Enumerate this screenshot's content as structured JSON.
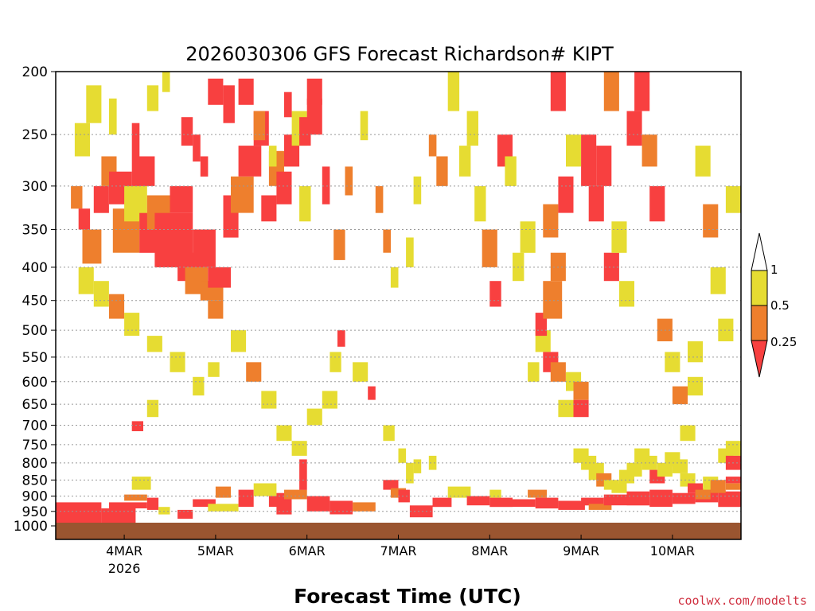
{
  "chart_data": {
    "type": "heatmap",
    "title": "2026030306 GFS Forecast Richardson# KIPT",
    "xlabel": "Forecast Time (UTC)",
    "ylabel": "",
    "credit": "coolwx.com/modelts",
    "y_scale": "log",
    "y_reversed": true,
    "ylim": [
      200,
      1000
    ],
    "y_ticks": [
      "200",
      "250",
      "300",
      "350",
      "400",
      "450",
      "500",
      "550",
      "600",
      "650",
      "700",
      "750",
      "800",
      "850",
      "900",
      "950",
      "1000"
    ],
    "y_tick_values": [
      200,
      250,
      300,
      350,
      400,
      450,
      500,
      550,
      600,
      650,
      700,
      750,
      800,
      850,
      900,
      950,
      1000
    ],
    "x_tick_labels": [
      "4MAR",
      "5MAR",
      "6MAR",
      "7MAR",
      "8MAR",
      "9MAR",
      "10MAR"
    ],
    "x_tick_hours": [
      18,
      42,
      66,
      90,
      114,
      138,
      162
    ],
    "x_sublabel": "2026",
    "x_sublabel_index": 0,
    "x_range_hours": [
      0,
      180
    ],
    "grid": true,
    "colors": {
      "low": "#f84040",
      "mid": "#ee7f2d",
      "high": "#e6dc32",
      "ground": "#9a5530"
    },
    "colorbar": {
      "labels": [
        "1",
        "0.5",
        "0.25"
      ],
      "levels": [
        1,
        0.5,
        0.25
      ]
    },
    "cells": [
      [
        0,
        12,
        920,
        1000,
        "low"
      ],
      [
        12,
        21,
        940,
        990,
        "low"
      ],
      [
        14,
        24,
        920,
        940,
        "low"
      ],
      [
        18,
        24,
        895,
        915,
        "mid"
      ],
      [
        20,
        25,
        840,
        880,
        "high"
      ],
      [
        24,
        27,
        905,
        945,
        "low"
      ],
      [
        27,
        30,
        935,
        960,
        "high"
      ],
      [
        32,
        36,
        945,
        975,
        "low"
      ],
      [
        36,
        42,
        910,
        935,
        "low"
      ],
      [
        40,
        48,
        925,
        950,
        "high"
      ],
      [
        42,
        46,
        870,
        905,
        "mid"
      ],
      [
        48,
        52,
        880,
        935,
        "low"
      ],
      [
        52,
        58,
        860,
        900,
        "high"
      ],
      [
        56,
        60,
        900,
        935,
        "low"
      ],
      [
        58,
        62,
        890,
        960,
        "low"
      ],
      [
        60,
        66,
        880,
        910,
        "mid"
      ],
      [
        64,
        66,
        790,
        880,
        "low"
      ],
      [
        66,
        72,
        900,
        950,
        "low"
      ],
      [
        72,
        78,
        915,
        960,
        "low"
      ],
      [
        78,
        84,
        920,
        950,
        "mid"
      ],
      [
        86,
        90,
        850,
        880,
        "low"
      ],
      [
        88,
        92,
        875,
        905,
        "mid"
      ],
      [
        90,
        93,
        880,
        920,
        "low"
      ],
      [
        92,
        94,
        800,
        860,
        "high"
      ],
      [
        93,
        99,
        930,
        970,
        "low"
      ],
      [
        99,
        104,
        905,
        935,
        "low"
      ],
      [
        103,
        109,
        870,
        905,
        "high"
      ],
      [
        108,
        114,
        900,
        930,
        "low"
      ],
      [
        114,
        120,
        905,
        935,
        "low"
      ],
      [
        114,
        117,
        880,
        905,
        "high"
      ],
      [
        120,
        126,
        910,
        935,
        "low"
      ],
      [
        124,
        129,
        880,
        905,
        "mid"
      ],
      [
        126,
        132,
        905,
        940,
        "low"
      ],
      [
        132,
        139,
        915,
        945,
        "low"
      ],
      [
        138,
        144,
        905,
        930,
        "low"
      ],
      [
        140,
        146,
        925,
        945,
        "mid"
      ],
      [
        144,
        150,
        895,
        930,
        "low"
      ],
      [
        150,
        156,
        885,
        930,
        "low"
      ],
      [
        156,
        162,
        880,
        935,
        "low"
      ],
      [
        162,
        168,
        890,
        925,
        "low"
      ],
      [
        168,
        174,
        875,
        920,
        "low"
      ],
      [
        174,
        180,
        885,
        935,
        "low"
      ],
      [
        176,
        180,
        840,
        860,
        "low"
      ],
      [
        176,
        180,
        860,
        880,
        "mid"
      ],
      [
        4,
        7,
        300,
        325,
        "mid"
      ],
      [
        6,
        9,
        325,
        350,
        "low"
      ],
      [
        7,
        12,
        350,
        395,
        "mid"
      ],
      [
        10,
        14,
        300,
        330,
        "low"
      ],
      [
        12,
        16,
        270,
        300,
        "mid"
      ],
      [
        14,
        20,
        285,
        320,
        "low"
      ],
      [
        15,
        22,
        325,
        380,
        "mid"
      ],
      [
        18,
        24,
        300,
        340,
        "high"
      ],
      [
        20,
        26,
        270,
        300,
        "low"
      ],
      [
        22,
        28,
        330,
        380,
        "low"
      ],
      [
        24,
        30,
        310,
        350,
        "mid"
      ],
      [
        26,
        36,
        330,
        400,
        "low"
      ],
      [
        30,
        36,
        300,
        330,
        "low"
      ],
      [
        32,
        39,
        380,
        420,
        "low"
      ],
      [
        34,
        40,
        400,
        440,
        "mid"
      ],
      [
        36,
        42,
        350,
        400,
        "low"
      ],
      [
        38,
        44,
        420,
        450,
        "mid"
      ],
      [
        40,
        46,
        400,
        430,
        "low"
      ],
      [
        44,
        48,
        310,
        360,
        "low"
      ],
      [
        46,
        52,
        290,
        330,
        "mid"
      ],
      [
        48,
        54,
        260,
        290,
        "low"
      ],
      [
        52,
        56,
        230,
        260,
        "low"
      ],
      [
        54,
        58,
        310,
        340,
        "low"
      ],
      [
        56,
        60,
        265,
        300,
        "mid"
      ],
      [
        58,
        62,
        285,
        320,
        "low"
      ],
      [
        60,
        64,
        250,
        280,
        "low"
      ],
      [
        62,
        66,
        230,
        260,
        "high"
      ],
      [
        64,
        67,
        300,
        340,
        "high"
      ],
      [
        66,
        70,
        220,
        250,
        "low"
      ],
      [
        70,
        72,
        280,
        320,
        "low"
      ],
      [
        73,
        76,
        350,
        390,
        "mid"
      ],
      [
        5,
        9,
        240,
        270,
        "high"
      ],
      [
        8,
        12,
        210,
        240,
        "high"
      ],
      [
        14,
        16,
        220,
        250,
        "high"
      ],
      [
        20,
        22,
        240,
        270,
        "low"
      ],
      [
        24,
        27,
        210,
        230,
        "high"
      ],
      [
        28,
        30,
        200,
        215,
        "high"
      ],
      [
        33,
        36,
        235,
        260,
        "low"
      ],
      [
        36,
        38,
        250,
        275,
        "low"
      ],
      [
        38,
        40,
        270,
        290,
        "low"
      ],
      [
        40,
        44,
        205,
        225,
        "low"
      ],
      [
        44,
        47,
        210,
        240,
        "low"
      ],
      [
        48,
        52,
        205,
        225,
        "low"
      ],
      [
        52,
        55,
        230,
        255,
        "mid"
      ],
      [
        56,
        58,
        260,
        280,
        "high"
      ],
      [
        60,
        62,
        215,
        235,
        "low"
      ],
      [
        64,
        67,
        235,
        260,
        "low"
      ],
      [
        66,
        70,
        205,
        225,
        "low"
      ],
      [
        6,
        10,
        400,
        440,
        "high"
      ],
      [
        10,
        14,
        420,
        460,
        "high"
      ],
      [
        14,
        18,
        440,
        480,
        "mid"
      ],
      [
        18,
        22,
        470,
        510,
        "high"
      ],
      [
        24,
        28,
        510,
        540,
        "high"
      ],
      [
        30,
        34,
        540,
        580,
        "high"
      ],
      [
        40,
        44,
        450,
        480,
        "mid"
      ],
      [
        46,
        50,
        500,
        540,
        "high"
      ],
      [
        50,
        54,
        560,
        600,
        "mid"
      ],
      [
        54,
        58,
        620,
        660,
        "high"
      ],
      [
        58,
        62,
        700,
        740,
        "high"
      ],
      [
        62,
        66,
        740,
        780,
        "high"
      ],
      [
        66,
        70,
        660,
        700,
        "high"
      ],
      [
        70,
        74,
        620,
        660,
        "high"
      ],
      [
        72,
        75,
        540,
        580,
        "high"
      ],
      [
        74,
        76,
        500,
        530,
        "low"
      ],
      [
        78,
        82,
        560,
        600,
        "high"
      ],
      [
        82,
        84,
        610,
        640,
        "low"
      ],
      [
        86,
        89,
        700,
        740,
        "high"
      ],
      [
        90,
        92,
        760,
        800,
        "high"
      ],
      [
        94,
        96,
        790,
        830,
        "high"
      ],
      [
        98,
        100,
        780,
        820,
        "high"
      ],
      [
        20,
        23,
        690,
        715,
        "low"
      ],
      [
        24,
        27,
        640,
        680,
        "high"
      ],
      [
        36,
        39,
        590,
        630,
        "high"
      ],
      [
        40,
        43,
        560,
        590,
        "high"
      ],
      [
        76,
        78,
        280,
        310,
        "mid"
      ],
      [
        80,
        82,
        230,
        255,
        "high"
      ],
      [
        84,
        86,
        300,
        330,
        "mid"
      ],
      [
        86,
        88,
        350,
        380,
        "mid"
      ],
      [
        88,
        90,
        400,
        430,
        "high"
      ],
      [
        92,
        94,
        360,
        400,
        "high"
      ],
      [
        94,
        96,
        290,
        320,
        "high"
      ],
      [
        98,
        100,
        250,
        270,
        "mid"
      ],
      [
        100,
        103,
        270,
        300,
        "mid"
      ],
      [
        103,
        106,
        200,
        230,
        "high"
      ],
      [
        106,
        109,
        260,
        290,
        "high"
      ],
      [
        108,
        111,
        230,
        260,
        "high"
      ],
      [
        110,
        113,
        300,
        340,
        "high"
      ],
      [
        112,
        116,
        350,
        400,
        "mid"
      ],
      [
        114,
        117,
        420,
        460,
        "low"
      ],
      [
        116,
        120,
        250,
        280,
        "low"
      ],
      [
        118,
        121,
        270,
        300,
        "high"
      ],
      [
        120,
        123,
        380,
        420,
        "high"
      ],
      [
        122,
        126,
        340,
        380,
        "high"
      ],
      [
        124,
        127,
        560,
        600,
        "high"
      ],
      [
        126,
        130,
        500,
        540,
        "high"
      ],
      [
        126,
        129,
        470,
        510,
        "low"
      ],
      [
        128,
        132,
        320,
        360,
        "mid"
      ],
      [
        128,
        133,
        420,
        480,
        "mid"
      ],
      [
        130,
        134,
        380,
        420,
        "mid"
      ],
      [
        132,
        136,
        290,
        330,
        "low"
      ],
      [
        130,
        134,
        200,
        230,
        "low"
      ],
      [
        134,
        138,
        250,
        280,
        "high"
      ],
      [
        134,
        138,
        580,
        620,
        "high"
      ],
      [
        136,
        140,
        600,
        640,
        "mid"
      ],
      [
        136,
        140,
        640,
        680,
        "low"
      ],
      [
        138,
        142,
        250,
        300,
        "low"
      ],
      [
        140,
        144,
        300,
        340,
        "low"
      ],
      [
        142,
        146,
        260,
        300,
        "low"
      ],
      [
        144,
        148,
        200,
        230,
        "mid"
      ],
      [
        144,
        148,
        380,
        420,
        "low"
      ],
      [
        146,
        150,
        340,
        380,
        "high"
      ],
      [
        148,
        152,
        420,
        460,
        "high"
      ],
      [
        150,
        154,
        230,
        260,
        "low"
      ],
      [
        152,
        156,
        200,
        230,
        "low"
      ],
      [
        154,
        158,
        250,
        280,
        "mid"
      ],
      [
        156,
        160,
        300,
        340,
        "low"
      ],
      [
        158,
        162,
        480,
        520,
        "mid"
      ],
      [
        160,
        164,
        540,
        580,
        "high"
      ],
      [
        162,
        166,
        610,
        650,
        "mid"
      ],
      [
        164,
        168,
        700,
        740,
        "high"
      ],
      [
        166,
        170,
        520,
        560,
        "high"
      ],
      [
        166,
        170,
        590,
        630,
        "high"
      ],
      [
        168,
        172,
        260,
        290,
        "high"
      ],
      [
        170,
        174,
        320,
        360,
        "mid"
      ],
      [
        172,
        176,
        400,
        440,
        "high"
      ],
      [
        174,
        178,
        480,
        520,
        "high"
      ],
      [
        176,
        180,
        300,
        330,
        "high"
      ],
      [
        128,
        132,
        540,
        580,
        "low"
      ],
      [
        130,
        134,
        560,
        600,
        "mid"
      ],
      [
        132,
        136,
        640,
        680,
        "high"
      ],
      [
        136,
        140,
        760,
        800,
        "high"
      ],
      [
        138,
        142,
        780,
        820,
        "high"
      ],
      [
        140,
        144,
        800,
        850,
        "high"
      ],
      [
        142,
        146,
        830,
        870,
        "mid"
      ],
      [
        144,
        148,
        850,
        880,
        "high"
      ],
      [
        146,
        150,
        860,
        890,
        "high"
      ],
      [
        148,
        152,
        820,
        860,
        "high"
      ],
      [
        150,
        154,
        800,
        840,
        "high"
      ],
      [
        152,
        156,
        760,
        800,
        "high"
      ],
      [
        154,
        158,
        780,
        820,
        "high"
      ],
      [
        156,
        160,
        820,
        860,
        "low"
      ],
      [
        158,
        162,
        800,
        840,
        "high"
      ],
      [
        160,
        164,
        770,
        810,
        "high"
      ],
      [
        162,
        166,
        790,
        830,
        "high"
      ],
      [
        164,
        168,
        830,
        870,
        "high"
      ],
      [
        166,
        170,
        860,
        890,
        "low"
      ],
      [
        168,
        172,
        880,
        910,
        "mid"
      ],
      [
        170,
        174,
        840,
        880,
        "high"
      ],
      [
        172,
        176,
        850,
        890,
        "mid"
      ],
      [
        174,
        178,
        760,
        800,
        "high"
      ],
      [
        176,
        180,
        740,
        780,
        "high"
      ],
      [
        176,
        180,
        780,
        820,
        "low"
      ]
    ]
  }
}
